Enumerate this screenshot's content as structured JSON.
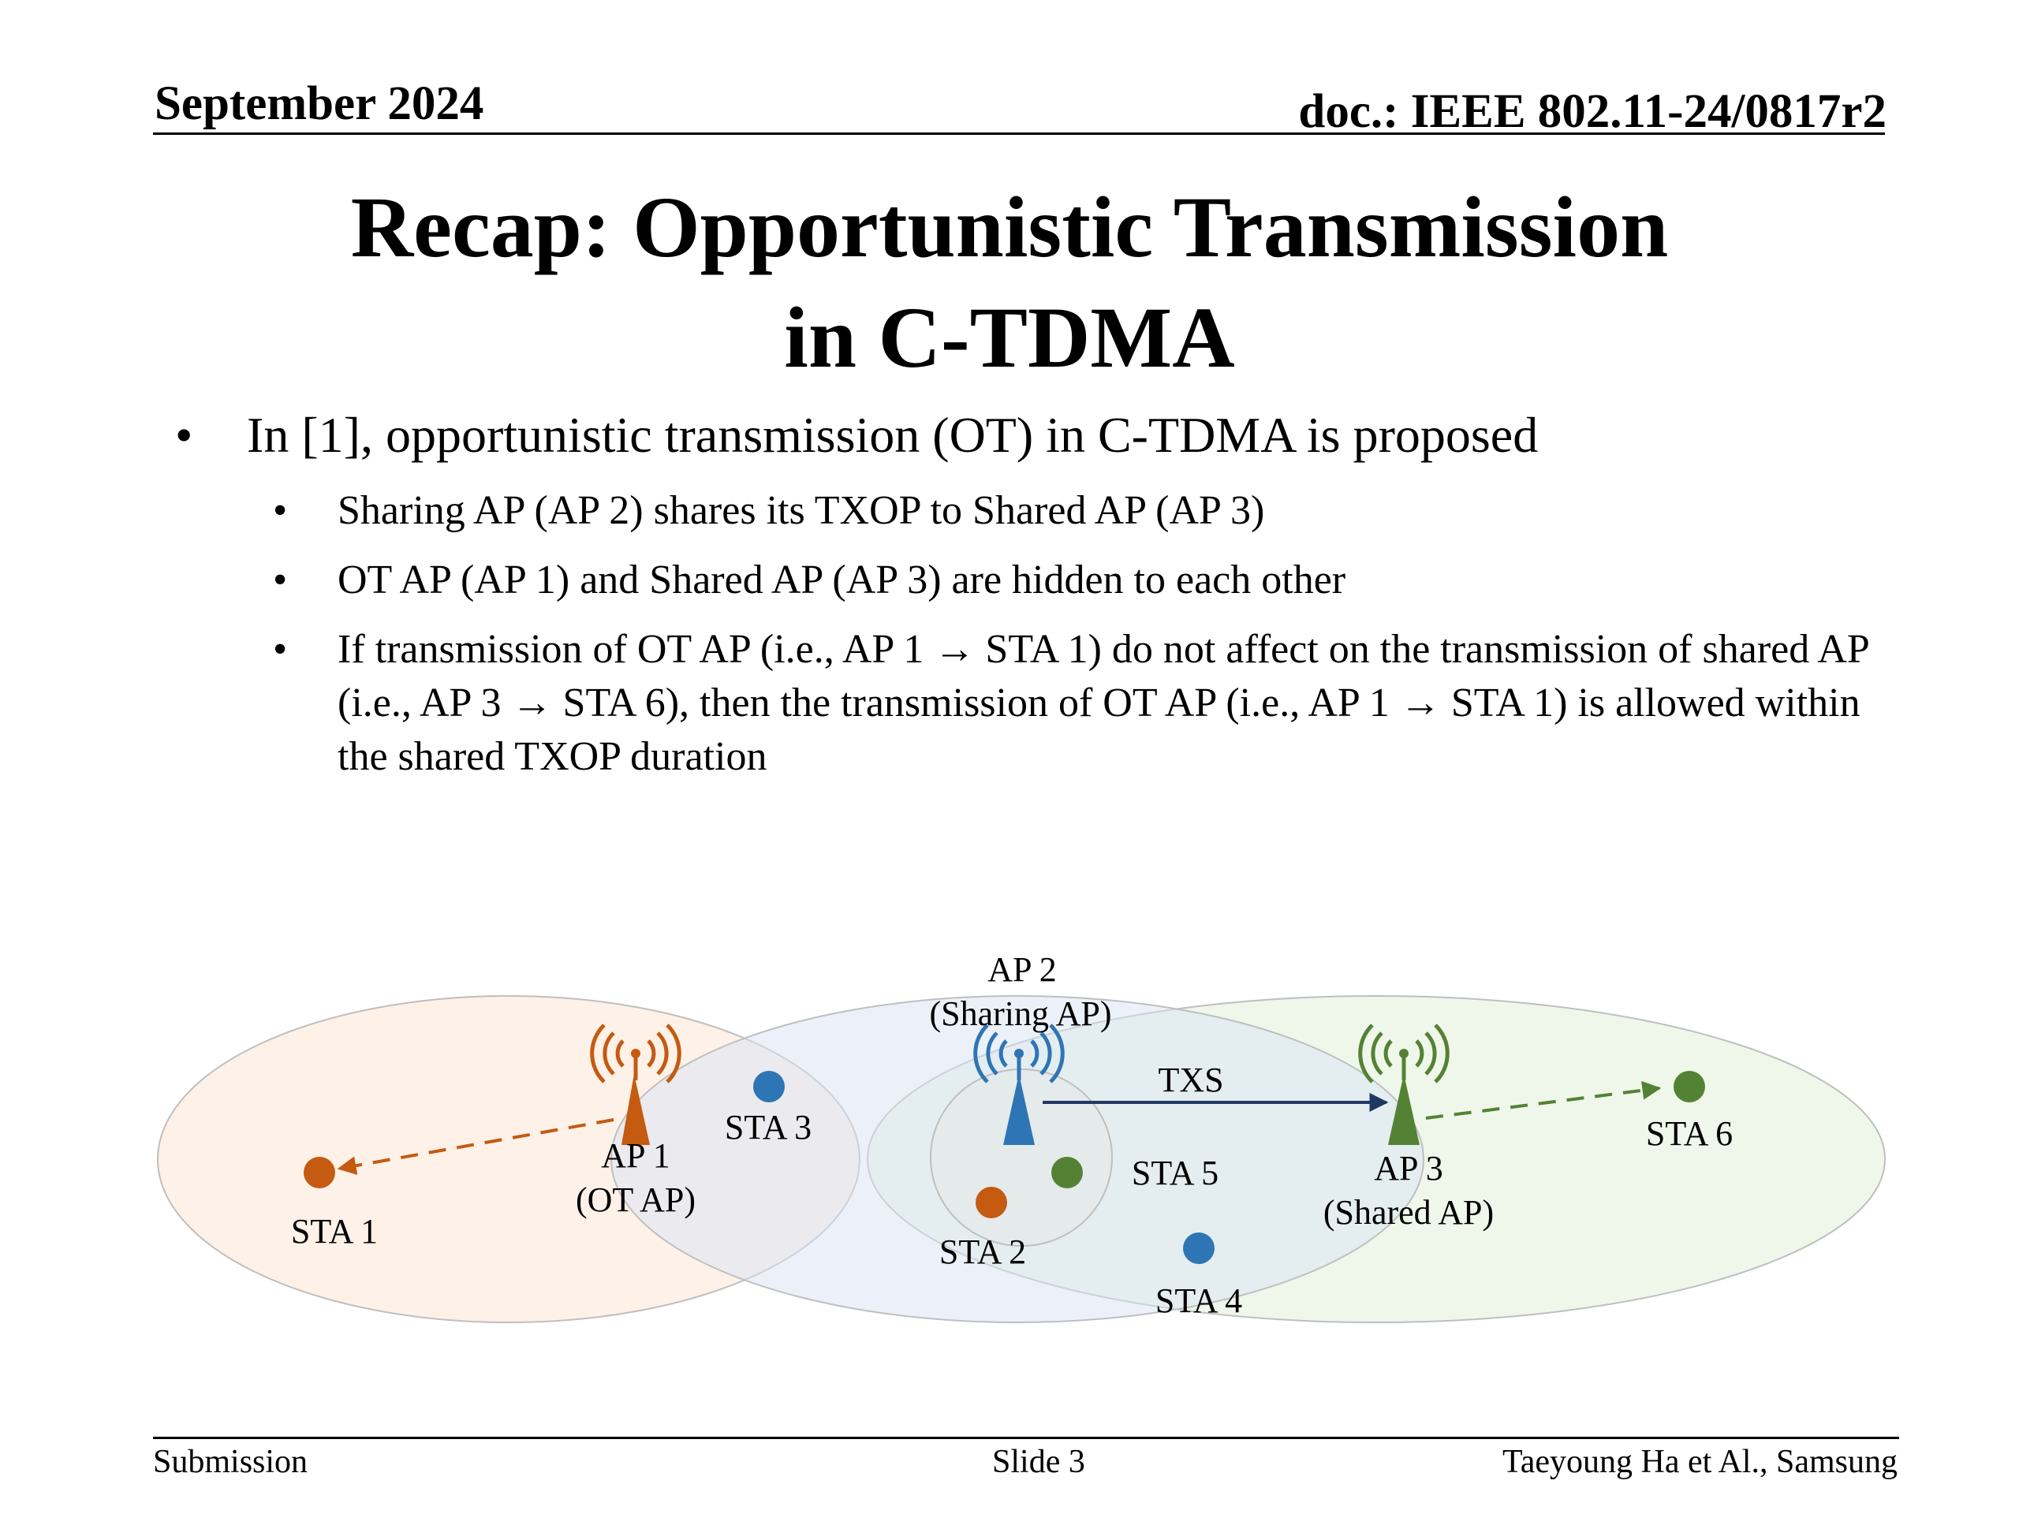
{
  "header": {
    "date": "September 2024",
    "doc": "doc.: IEEE 802.11-24/0817r2"
  },
  "title": {
    "line1": "Recap: Opportunistic Transmission",
    "line2": "in C-TDMA"
  },
  "bullets": {
    "main": "In [1], opportunistic transmission (OT) in C-TDMA is proposed",
    "sub1": "Sharing AP (AP 2) shares its TXOP to Shared AP (AP 3)",
    "sub2": "OT AP (AP 1) and Shared AP (AP 3) are hidden to each other",
    "sub3": "If transmission of OT AP (i.e., AP 1 → STA 1) do not affect on the transmission of shared AP (i.e., AP 3 → STA 6), then the transmission of OT AP (i.e., AP 1 → STA 1) is allowed within the shared TXOP duration"
  },
  "diagram": {
    "ap1": {
      "line1": "AP 1",
      "line2": "(OT AP)",
      "color": "#C55A11"
    },
    "ap2": {
      "line1": "AP 2",
      "line2": "(Sharing AP)",
      "color": "#2E75B6"
    },
    "ap3": {
      "line1": "AP 3",
      "line2": "(Shared AP)",
      "color": "#548235"
    },
    "sta1": "STA 1",
    "sta2": "STA 2",
    "sta3": "STA 3",
    "sta4": "STA 4",
    "sta5": "STA 5",
    "sta6": "STA 6",
    "txs_label": "TXS",
    "arrow_color": "#203864"
  },
  "footer": {
    "left": "Submission",
    "center": "Slide 3",
    "right": "Taeyoung Ha et Al., Samsung"
  }
}
